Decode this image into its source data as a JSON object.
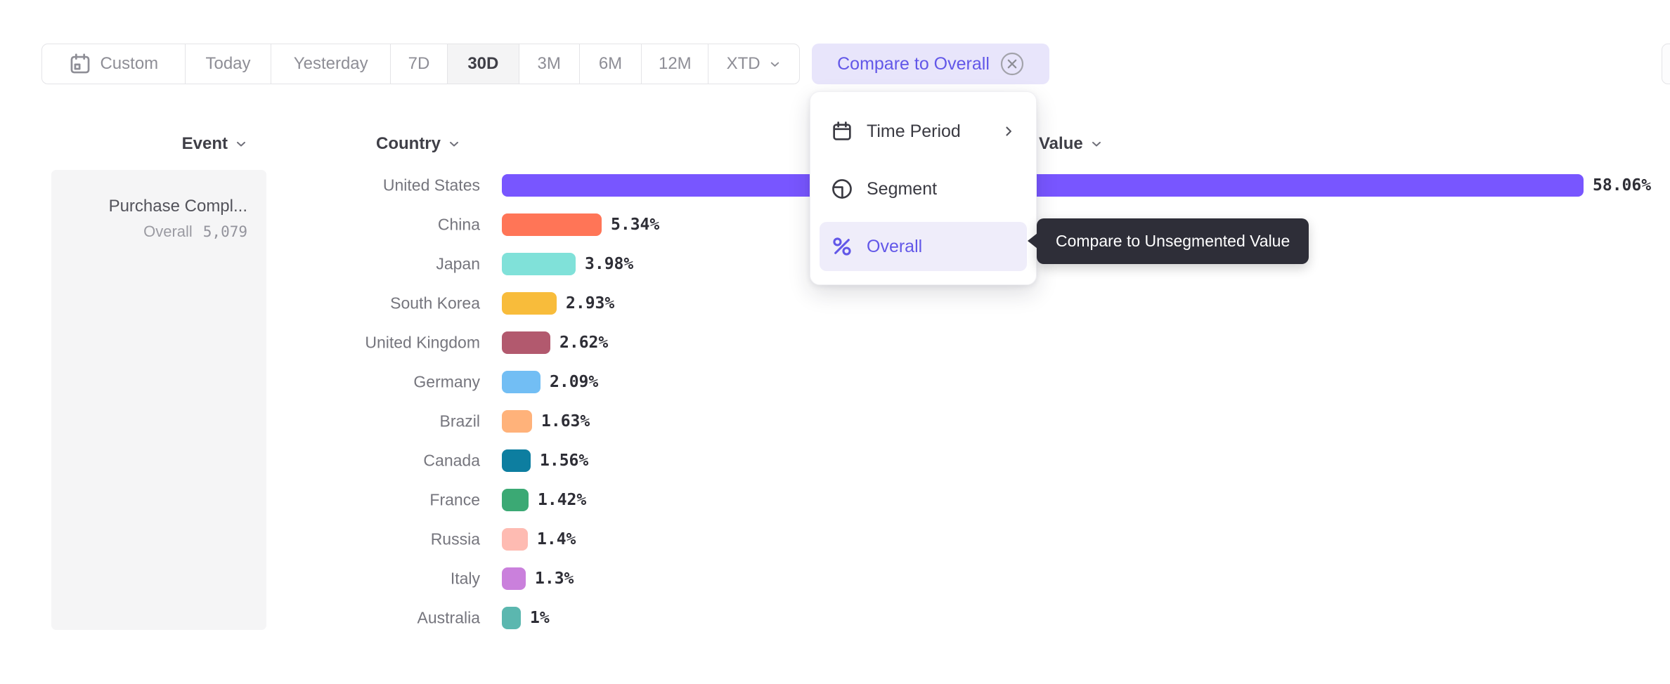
{
  "colors": {
    "accent_purple": "#6257E8",
    "chip_bg": "#E8E5FB",
    "selected_segment_bg": "#F4F4F5",
    "card_bg": "#F5F5F6",
    "menu_highlight_bg": "#EFEDFA",
    "tooltip_bg": "#2E2E38"
  },
  "toolbar": {
    "segments": [
      {
        "label": "Custom",
        "icon": "calendar-icon"
      },
      {
        "label": "Today"
      },
      {
        "label": "Yesterday"
      },
      {
        "label": "7D"
      },
      {
        "label": "30D",
        "selected": true
      },
      {
        "label": "3M"
      },
      {
        "label": "6M"
      },
      {
        "label": "12M"
      },
      {
        "label": "XTD",
        "chevron": true
      }
    ]
  },
  "compare_chip": {
    "label": "Compare to Overall"
  },
  "dropdown_menu": {
    "items": [
      {
        "label": "Time Period",
        "icon": "calendar-icon",
        "submenu": true
      },
      {
        "label": "Segment",
        "icon": "segment-icon"
      },
      {
        "label": "Overall",
        "icon": "percent-icon",
        "selected": true
      }
    ]
  },
  "tooltip": {
    "text": "Compare to Unsegmented Value"
  },
  "column_headers": {
    "event": "Event",
    "country": "Country",
    "value": "Value"
  },
  "event_card": {
    "title": "Purchase Compl...",
    "overall_label": "Overall",
    "overall_value": "5,079"
  },
  "chart_data": {
    "type": "bar",
    "orientation": "horizontal",
    "title": "",
    "xlabel": "Country",
    "ylabel": "Value",
    "unit": "percent",
    "xlim": [
      0,
      60
    ],
    "grid": false,
    "categories": [
      "United States",
      "China",
      "Japan",
      "South Korea",
      "United Kingdom",
      "Germany",
      "Brazil",
      "Canada",
      "France",
      "Russia",
      "Italy",
      "Australia"
    ],
    "values": [
      58.06,
      5.34,
      3.98,
      2.93,
      2.62,
      2.09,
      1.63,
      1.56,
      1.42,
      1.4,
      1.3,
      1
    ],
    "value_labels": [
      "58.06%",
      "5.34%",
      "3.98%",
      "2.93%",
      "2.62%",
      "2.09%",
      "1.63%",
      "1.56%",
      "1.42%",
      "1.4%",
      "1.3%",
      "1%"
    ],
    "colors": [
      "#7856FF",
      "#FF7557",
      "#80E1D9",
      "#F8BC3B",
      "#B2596E",
      "#72BEF4",
      "#FFB27A",
      "#0D7EA0",
      "#3BA974",
      "#FEBBB2",
      "#CA80DC",
      "#5BB7AF"
    ]
  }
}
